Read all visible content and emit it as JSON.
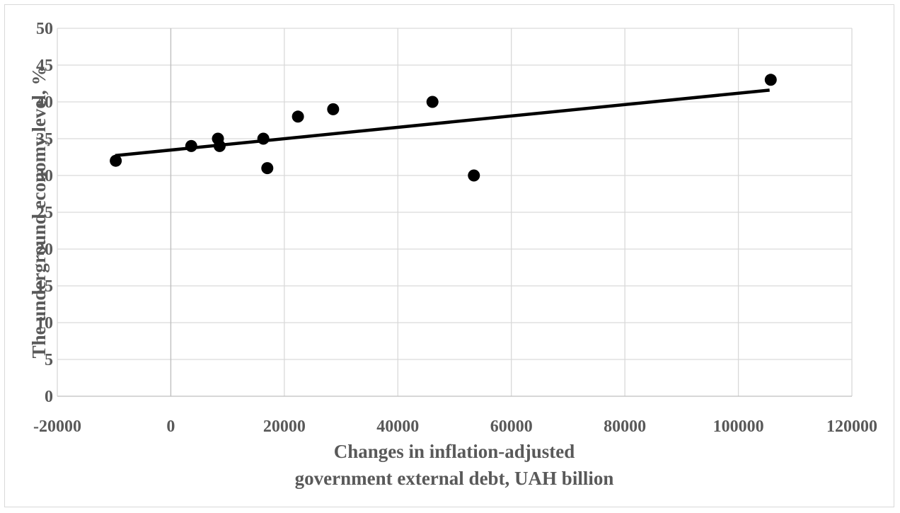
{
  "chart_data": {
    "type": "scatter",
    "title": "",
    "xlabel_lines": [
      "Changes in inflation-adjusted",
      "government external debt, UAH billion"
    ],
    "ylabel": "The underground economy level, %",
    "xlim": [
      -20000,
      120000
    ],
    "ylim": [
      0,
      50
    ],
    "x_ticks": [
      -20000,
      0,
      20000,
      40000,
      60000,
      80000,
      100000,
      120000
    ],
    "y_ticks": [
      0,
      5,
      10,
      15,
      20,
      25,
      30,
      35,
      40,
      45,
      50
    ],
    "grid": true,
    "legend": "none",
    "marker_color": "#000000",
    "trendline": {
      "type": "linear",
      "x": [
        -9800,
        105500
      ],
      "y": [
        32.7,
        41.6
      ]
    },
    "points": [
      {
        "x": -9700,
        "y": 32
      },
      {
        "x": 3600,
        "y": 34
      },
      {
        "x": 8300,
        "y": 35
      },
      {
        "x": 8600,
        "y": 34
      },
      {
        "x": 16300,
        "y": 35
      },
      {
        "x": 17000,
        "y": 31
      },
      {
        "x": 22400,
        "y": 38
      },
      {
        "x": 28600,
        "y": 39
      },
      {
        "x": 46100,
        "y": 40
      },
      {
        "x": 53400,
        "y": 30
      },
      {
        "x": 105700,
        "y": 43
      }
    ]
  }
}
